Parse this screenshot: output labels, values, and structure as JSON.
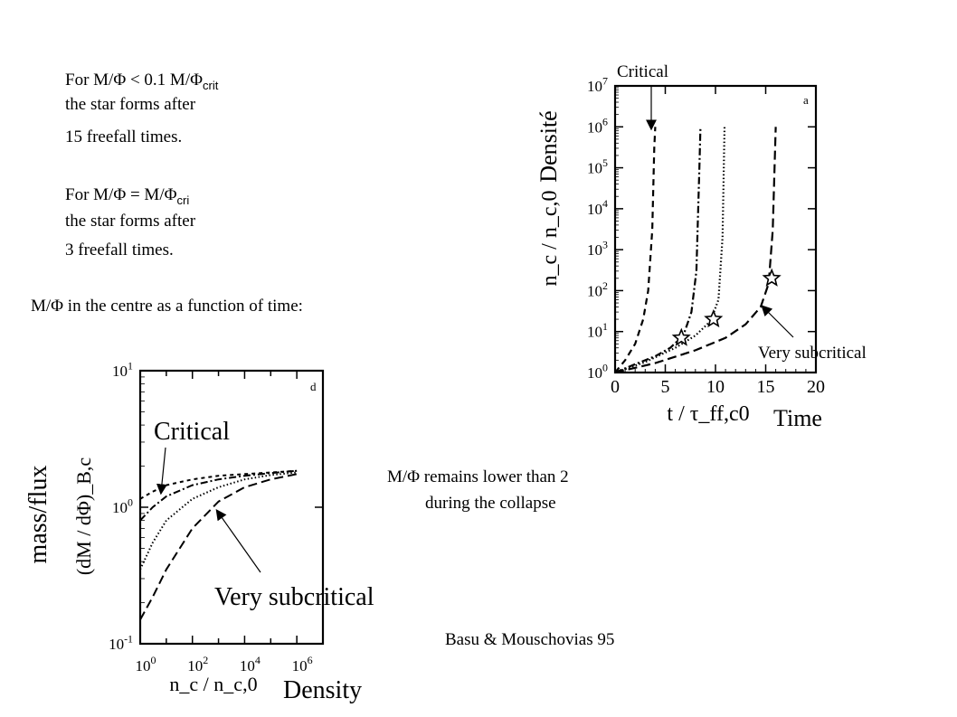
{
  "notes": {
    "block1_line1_pre": "For M/Φ < 0.1 M/Φ",
    "block1_line1_sub": "crit",
    "block1_line2": "the star forms after",
    "block1_line3": "15 freefall times.",
    "block2_line1_pre": "For  M/Φ = M/Φ",
    "block2_line1_sub": "cri",
    "block2_line2": "the star forms after",
    "block2_line3": "3 freefall times.",
    "centre_caption": "M/Φ in the centre as a function of time:",
    "remains_line1": "M/Φ remains lower than 2",
    "remains_line2": "during the collapse",
    "citation": "Basu & Mouschovias 95"
  },
  "chart_data": [
    {
      "type": "line",
      "panel_letter": "a",
      "xlabel": "t / τ_ff,c0",
      "ylabel": "n_c / n_c,0",
      "x_ticks": [
        "0",
        "5",
        "10",
        "15",
        "20"
      ],
      "y_ticks": [
        "10^0",
        "10^1",
        "10^2",
        "10^3",
        "10^4",
        "10^5",
        "10^6",
        "10^7"
      ],
      "xlim": [
        0,
        20
      ],
      "ylim": [
        1,
        10000000
      ],
      "y_scale": "log",
      "overlay_labels": {
        "y": "Densité",
        "x": "Time",
        "critical": "Critical",
        "very_subcritical": "Very subcritical"
      },
      "series": [
        {
          "style": "dashed",
          "points": [
            [
              0,
              1
            ],
            [
              1,
              2
            ],
            [
              2,
              5
            ],
            [
              2.8,
              20
            ],
            [
              3.3,
              100
            ],
            [
              3.7,
              3000
            ],
            [
              3.9,
              300000
            ],
            [
              4.0,
              1000000
            ]
          ]
        },
        {
          "style": "dash-dot",
          "points": [
            [
              0,
              1
            ],
            [
              2,
              1.6
            ],
            [
              4,
              2.5
            ],
            [
              5.5,
              4
            ],
            [
              6.8,
              8
            ],
            [
              7.6,
              30
            ],
            [
              8.1,
              300
            ],
            [
              8.4,
              100000
            ],
            [
              8.5,
              1000000
            ]
          ]
        },
        {
          "style": "dotted",
          "points": [
            [
              0,
              1
            ],
            [
              3,
              1.8
            ],
            [
              6,
              4
            ],
            [
              8,
              8
            ],
            [
              9.5,
              18
            ],
            [
              10.3,
              60
            ],
            [
              10.7,
              2000
            ],
            [
              10.9,
              1000000
            ]
          ]
        },
        {
          "style": "long-dashed",
          "points": [
            [
              0,
              1
            ],
            [
              4,
              1.7
            ],
            [
              8,
              3.5
            ],
            [
              11,
              7
            ],
            [
              13,
              15
            ],
            [
              14.5,
              40
            ],
            [
              15.3,
              150
            ],
            [
              15.7,
              3000
            ],
            [
              16,
              1000000
            ]
          ]
        }
      ],
      "stars": [
        [
          6.6,
          7
        ],
        [
          9.8,
          20
        ],
        [
          15.6,
          200
        ]
      ]
    },
    {
      "type": "line",
      "panel_letter": "d",
      "xlabel": "n_c / n_c,0",
      "ylabel": "(dM / dΦ)_B,c",
      "x_ticks": [
        "10^0",
        "10^2",
        "10^4",
        "10^6"
      ],
      "y_ticks": [
        "10^-1",
        "10^0",
        "10^1"
      ],
      "xlim": [
        1,
        10000000
      ],
      "ylim": [
        0.1,
        10
      ],
      "x_scale": "log",
      "y_scale": "log",
      "overlay_labels": {
        "y": "mass/flux",
        "x": "Density",
        "critical": "Critical",
        "very_subcritical": "Very subcritical"
      },
      "series": [
        {
          "style": "short-dashed",
          "points": [
            [
              1,
              1.15
            ],
            [
              3,
              1.3
            ],
            [
              10,
              1.45
            ],
            [
              100,
              1.6
            ],
            [
              1000,
              1.7
            ],
            [
              10000,
              1.75
            ],
            [
              100000,
              1.8
            ],
            [
              1000000,
              1.85
            ]
          ]
        },
        {
          "style": "dash-dot",
          "points": [
            [
              1,
              0.8
            ],
            [
              3,
              1.0
            ],
            [
              10,
              1.2
            ],
            [
              100,
              1.45
            ],
            [
              1000,
              1.6
            ],
            [
              10000,
              1.7
            ],
            [
              100000,
              1.78
            ],
            [
              1000000,
              1.85
            ]
          ]
        },
        {
          "style": "dotted",
          "points": [
            [
              1,
              0.35
            ],
            [
              3,
              0.55
            ],
            [
              10,
              0.8
            ],
            [
              100,
              1.15
            ],
            [
              1000,
              1.4
            ],
            [
              10000,
              1.6
            ],
            [
              100000,
              1.72
            ],
            [
              1000000,
              1.8
            ]
          ]
        },
        {
          "style": "long-dashed",
          "points": [
            [
              1,
              0.15
            ],
            [
              3,
              0.22
            ],
            [
              10,
              0.35
            ],
            [
              100,
              0.7
            ],
            [
              1000,
              1.1
            ],
            [
              10000,
              1.4
            ],
            [
              100000,
              1.6
            ],
            [
              1000000,
              1.75
            ]
          ]
        }
      ]
    }
  ]
}
